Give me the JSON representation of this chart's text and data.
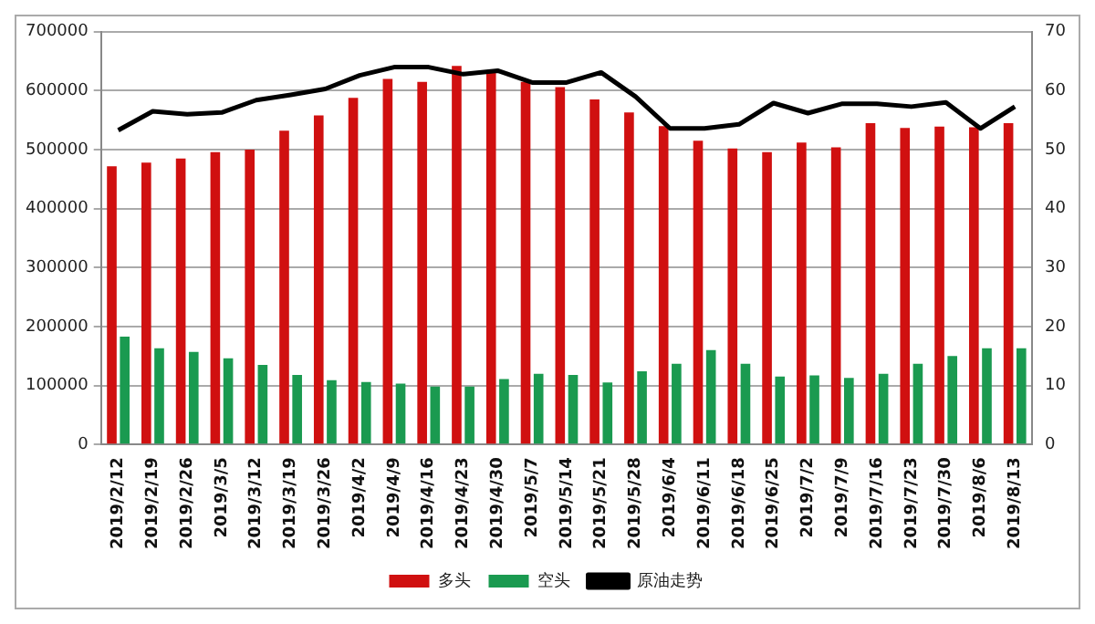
{
  "chart_data": {
    "type": "bar",
    "categories": [
      "2019/2/12",
      "2019/2/19",
      "2019/2/26",
      "2019/3/5",
      "2019/3/12",
      "2019/3/19",
      "2019/3/26",
      "2019/4/2",
      "2019/4/9",
      "2019/4/16",
      "2019/4/23",
      "2019/4/30",
      "2019/5/7",
      "2019/5/14",
      "2019/5/21",
      "2019/5/28",
      "2019/6/4",
      "2019/6/11",
      "2019/6/18",
      "2019/6/25",
      "2019/7/2",
      "2019/7/9",
      "2019/7/16",
      "2019/7/23",
      "2019/7/30",
      "2019/8/6",
      "2019/8/13"
    ],
    "series": [
      {
        "name": "多头",
        "color": "#d01010",
        "values": [
          472000,
          478000,
          485000,
          496000,
          500000,
          532000,
          558000,
          588000,
          620000,
          615000,
          642000,
          632000,
          615000,
          606000,
          585000,
          563000,
          540000,
          515000,
          502000,
          496000,
          512000,
          504000,
          545000,
          537000,
          539000,
          538000,
          545000
        ]
      },
      {
        "name": "空头",
        "color": "#1a9a50",
        "values": [
          183000,
          163000,
          157000,
          146000,
          135000,
          118000,
          109000,
          106000,
          103000,
          98000,
          98000,
          111000,
          120000,
          118000,
          105000,
          124000,
          137000,
          160000,
          137000,
          115000,
          117000,
          113000,
          120000,
          137000,
          150000,
          163000,
          163000
        ]
      },
      {
        "name": "原油走势",
        "type": "line",
        "axis": "y2",
        "color": "#000000",
        "values": [
          53.3,
          56.5,
          56.0,
          56.3,
          58.4,
          59.3,
          60.3,
          62.6,
          64.0,
          64.0,
          62.8,
          63.4,
          61.4,
          61.4,
          63.1,
          59.0,
          53.6,
          53.6,
          54.3,
          57.9,
          56.2,
          57.8,
          57.8,
          57.3,
          58.0,
          53.6,
          57.3
        ]
      }
    ],
    "ylim": [
      0,
      700000
    ],
    "yticks": [
      0,
      100000,
      200000,
      300000,
      400000,
      500000,
      600000,
      700000
    ],
    "y2lim": [
      0,
      70
    ],
    "y2ticks": [
      0,
      10,
      20,
      30,
      40,
      50,
      60,
      70
    ],
    "grid": "y",
    "legend": "bottom",
    "marker": "none"
  }
}
